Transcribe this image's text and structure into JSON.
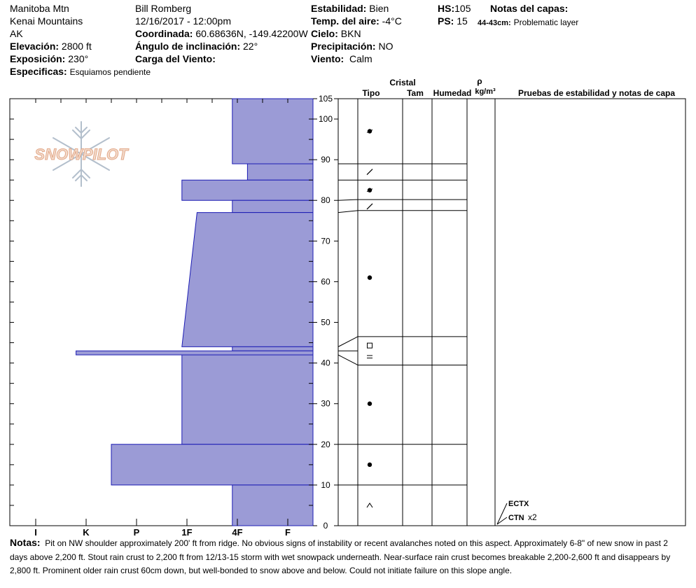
{
  "header": {
    "location": "Manitoba Mtn",
    "range": "Kenai Mountains",
    "state": "AK",
    "elevation_label": "Elevación:",
    "elevation": "2800 ft",
    "aspect_label": "Exposición:",
    "aspect": "230°",
    "specifics_label": "Especificas:",
    "specifics": "Esquiamos pendiente",
    "observer": "Bill Romberg",
    "datetime": "12/16/2017 - 12:00pm",
    "coord_label": "Coordinada:",
    "coord": "60.68636N, -149.42200W",
    "slope_label": "Ángulo de inclinación:",
    "slope": "22°",
    "wind_loading_label": "Carga del Viento:",
    "stability_label": "Estabilidad:",
    "stability": "Bien",
    "airtemp_label": "Temp. del aire:",
    "airtemp": "-4°C",
    "sky_label": "Cielo:",
    "sky": "BKN",
    "precip_label": "Precipitación:",
    "precip": "NO",
    "wind_label": "Viento:",
    "wind": "Calm",
    "hs_label": "HS:",
    "hs": "105",
    "ps_label": "PS:",
    "ps": "15",
    "layer_notes_label": "Notas del capas:",
    "layer_note_range": "44-43cm:",
    "layer_note_text": "Problematic layer"
  },
  "logo": {
    "text": "SNOWPILOT"
  },
  "columns": {
    "crystal": "Cristal",
    "type": "Tipo",
    "size": "Tam",
    "moisture": "Humedad",
    "rho": "ρ",
    "density_unit": "kg/m³",
    "tests": "Pruebas de estabilidad y notas de capa"
  },
  "tests": [
    {
      "depth": 5,
      "label": "ECTX",
      "extra": ""
    },
    {
      "depth": 2,
      "label": "CTN",
      "extra": "x2"
    }
  ],
  "notes": {
    "label": "Notas:",
    "text": "Pit on NW shoulder approximately 200' ft from ridge.  No obvious signs of instability or recent avalanches noted on this aspect.  Approximately 6-8\" of new snow in past 2 days above 2,200 ft.  Stout rain crust to 2,200 ft from 12/13-15 storm with wet snowpack underneath.  Near-surface rain crust becomes breakable 2,200-2,600 ft and disappears by 2,800 ft.    Prominent older rain crust 60cm down, but well-bonded to snow above and below.  Could not initiate failure on this slope angle."
  },
  "chart_data": {
    "type": "bar",
    "title": "",
    "xlabel": "",
    "ylabel": "",
    "ylim": [
      0,
      105
    ],
    "y_ticks": [
      0,
      10,
      20,
      30,
      40,
      50,
      60,
      70,
      80,
      90,
      100,
      105
    ],
    "hardness_ticks": [
      "I",
      "K",
      "P",
      "1F",
      "4F",
      "F"
    ],
    "hardness_values": [
      5.5,
      4.5,
      3.5,
      2.5,
      1.5,
      0.5
    ],
    "hardness_max": 6,
    "series": [
      {
        "layers": [
          {
            "top": 105,
            "bottom": 89,
            "hardness": 1.6,
            "hardness_bottom": 1.6,
            "grain": "round",
            "grain_depth": 97
          },
          {
            "top": 89,
            "bottom": 85,
            "hardness": 1.3,
            "hardness_bottom": 1.3,
            "grain": "slash",
            "grain_depth": 87
          },
          {
            "top": 85,
            "bottom": 80,
            "hardness": 2.6,
            "hardness_bottom": 2.6,
            "grain": "round",
            "grain_depth": 82.5
          },
          {
            "top": 80,
            "bottom": 77,
            "hardness": 1.6,
            "hardness_bottom": 1.6,
            "grain": "slash",
            "grain_depth": 78.5
          },
          {
            "top": 77,
            "bottom": 44,
            "hardness": 2.3,
            "hardness_bottom": 2.6,
            "grain": "dot",
            "grain_depth": 61
          },
          {
            "top": 44,
            "bottom": 43,
            "hardness": 1.6,
            "hardness_bottom": 1.6,
            "grain": "square",
            "grain_depth": 44.3
          },
          {
            "top": 43,
            "bottom": 42,
            "hardness": 4.7,
            "hardness_bottom": 4.7,
            "grain": "",
            "grain_depth": 43
          },
          {
            "top": 42,
            "bottom": 20,
            "hardness": 2.6,
            "hardness_bottom": 2.6,
            "grain": "equal",
            "grain_depth": 41.5
          },
          {
            "top": 20,
            "bottom": 10,
            "hardness": 4.0,
            "hardness_bottom": 4.0,
            "grain": "dot",
            "grain_depth": 15
          },
          {
            "top": 10,
            "bottom": 0,
            "hardness": 1.6,
            "hardness_bottom": 1.6,
            "grain": "caret",
            "grain_depth": 5
          }
        ]
      }
    ],
    "dot_markers": [
      30
    ]
  }
}
